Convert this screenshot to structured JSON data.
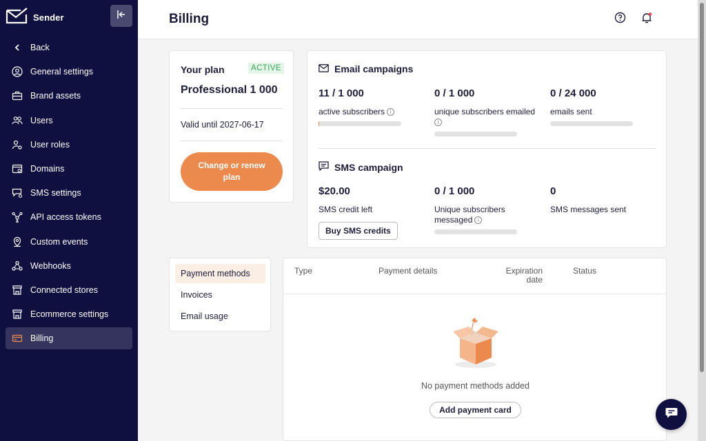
{
  "sidebar": {
    "brand": "Sender",
    "items": [
      {
        "label": "Back",
        "icon": "chevron-left-icon"
      },
      {
        "label": "General settings",
        "icon": "user-circle-icon"
      },
      {
        "label": "Brand assets",
        "icon": "briefcase-icon"
      },
      {
        "label": "Users",
        "icon": "users-icon"
      },
      {
        "label": "User roles",
        "icon": "user-gear-icon"
      },
      {
        "label": "Domains",
        "icon": "browser-icon"
      },
      {
        "label": "SMS settings",
        "icon": "sms-gear-icon"
      },
      {
        "label": "API access tokens",
        "icon": "api-icon"
      },
      {
        "label": "Custom events",
        "icon": "map-pin-icon"
      },
      {
        "label": "Webhooks",
        "icon": "webhook-icon"
      },
      {
        "label": "Connected stores",
        "icon": "store-icon"
      },
      {
        "label": "Ecommerce settings",
        "icon": "store-icon"
      },
      {
        "label": "Billing",
        "icon": "credit-card-icon"
      }
    ],
    "active": "Billing"
  },
  "header": {
    "title": "Billing"
  },
  "plan": {
    "title": "Your plan",
    "badge": "ACTIVE",
    "name": "Professional 1 000",
    "valid_until": "Valid until 2027-06-17",
    "renew_label": "Change or renew plan"
  },
  "email_campaigns": {
    "title": "Email campaigns",
    "stats": [
      {
        "value": "11 / 1 000",
        "label": "active subscribers",
        "progress": 0.011
      },
      {
        "value": "0 / 1 000",
        "label": "unique subscribers emailed",
        "progress": 0
      },
      {
        "value": "0 / 24 000",
        "label": "emails sent",
        "progress": 0
      }
    ]
  },
  "sms_campaign": {
    "title": "SMS campaign",
    "stats": [
      {
        "value": "$20.00",
        "label": "SMS credit left"
      },
      {
        "value": "0 / 1 000",
        "label": "Unique subscribers messaged",
        "progress": 0
      },
      {
        "value": "0",
        "label": "SMS messages sent"
      }
    ],
    "buy_label": "Buy SMS credits"
  },
  "billing_menu": {
    "items": [
      "Payment methods",
      "Invoices",
      "Email usage"
    ],
    "selected": "Payment methods"
  },
  "payment_table": {
    "columns": [
      "Type",
      "Payment details",
      "Expiration date",
      "Status"
    ],
    "empty_message": "No payment methods added",
    "add_label": "Add payment card"
  },
  "colors": {
    "sidebar_bg": "#101040",
    "accent_orange": "#ec8a4e",
    "active_green": "#3aa55a",
    "notification_dot": "#e5484d"
  }
}
